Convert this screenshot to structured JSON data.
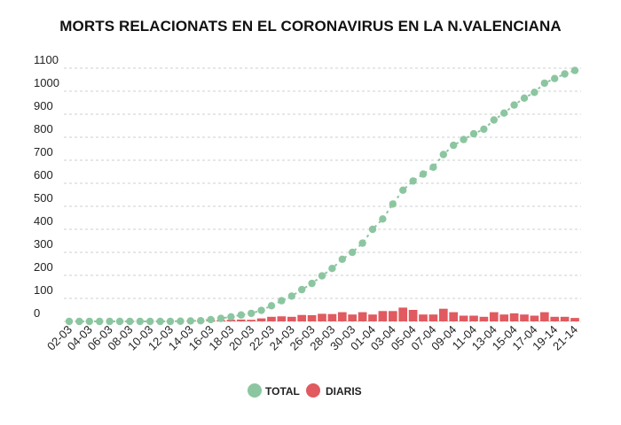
{
  "chart_data": {
    "type": "bar",
    "title": "MORTS RELACIONATS EN EL CORONAVIRUS EN LA N.VALENCIANA",
    "xlabel": "",
    "ylabel": "",
    "ylim": [
      0,
      1100
    ],
    "yticks": [
      0,
      100,
      200,
      300,
      400,
      500,
      600,
      700,
      800,
      900,
      1000,
      1100
    ],
    "grid": "horizontal-dashed",
    "legend_position": "bottom-center",
    "x_tick_labels": [
      "02-03",
      "04-03",
      "06-03",
      "08-03",
      "10-03",
      "12-03",
      "14-03",
      "16-03",
      "18-03",
      "20-03",
      "22-03",
      "24-03",
      "26-03",
      "28-03",
      "30-03",
      "01-04",
      "03-04",
      "05-04",
      "07-04",
      "09-04",
      "11-04",
      "13-04",
      "15-04",
      "17-04",
      "19-14",
      "21-14"
    ],
    "x": [
      "02-03",
      "03-03",
      "04-03",
      "05-03",
      "06-03",
      "07-03",
      "08-03",
      "09-03",
      "10-03",
      "11-03",
      "12-03",
      "13-03",
      "14-03",
      "15-03",
      "16-03",
      "17-03",
      "18-03",
      "19-03",
      "20-03",
      "21-03",
      "22-03",
      "23-03",
      "24-03",
      "25-03",
      "26-03",
      "27-03",
      "28-03",
      "29-03",
      "30-03",
      "31-03",
      "01-04",
      "02-04",
      "03-04",
      "04-04",
      "05-04",
      "06-04",
      "07-04",
      "08-04",
      "09-04",
      "10-04",
      "11-04",
      "12-04",
      "13-04",
      "14-04",
      "15-04",
      "16-04",
      "17-04",
      "18-04",
      "19-14",
      "20-14",
      "21-14"
    ],
    "series": [
      {
        "name": "TOTAL",
        "style": "dotted-line",
        "color": "#8cc6a0",
        "values": [
          0,
          0,
          0,
          0,
          0,
          0,
          0,
          0,
          0,
          0,
          0,
          1,
          2,
          3,
          8,
          13,
          20,
          28,
          35,
          48,
          68,
          90,
          110,
          138,
          165,
          198,
          230,
          270,
          300,
          340,
          400,
          445,
          510,
          570,
          610,
          640,
          670,
          725,
          765,
          790,
          815,
          835,
          875,
          905,
          940,
          970,
          995,
          1035,
          1055,
          1075,
          1090
        ]
      },
      {
        "name": "DIARIS",
        "style": "bar",
        "color": "#e05a5f",
        "values": [
          0,
          0,
          0,
          0,
          0,
          0,
          0,
          0,
          0,
          0,
          0,
          1,
          1,
          1,
          5,
          5,
          7,
          8,
          7,
          13,
          20,
          22,
          20,
          28,
          27,
          33,
          32,
          40,
          30,
          40,
          30,
          45,
          45,
          60,
          50,
          30,
          30,
          55,
          40,
          25,
          25,
          20,
          40,
          30,
          35,
          30,
          25,
          40,
          20,
          20,
          15
        ]
      }
    ]
  }
}
